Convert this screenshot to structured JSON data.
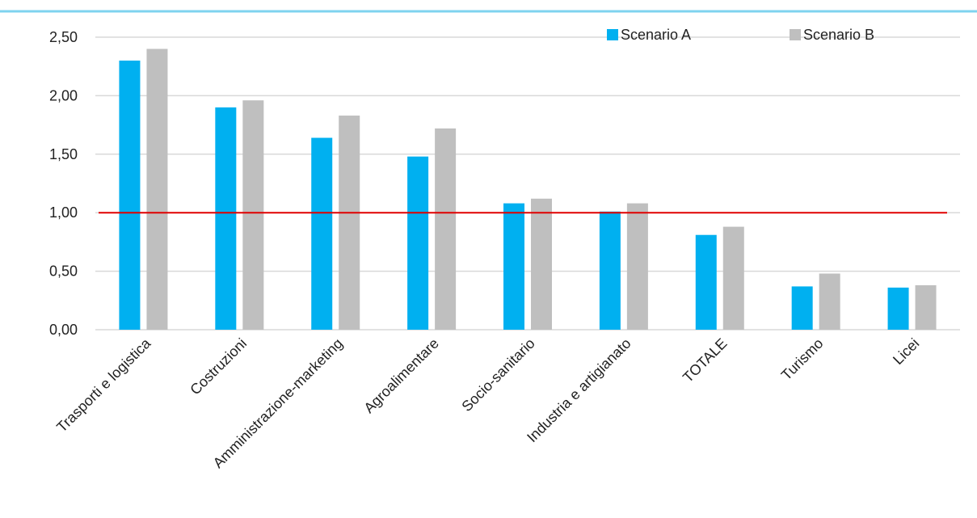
{
  "chart_data": {
    "type": "bar",
    "categories": [
      "Trasporti e logistica",
      "Costruzioni",
      "Amministrazione-marketing",
      "Agroalimentare",
      "Socio-sanitario",
      "Industria e artigianato",
      "TOTALE",
      "Turismo",
      "Licei"
    ],
    "series": [
      {
        "name": "Scenario A",
        "color": "#00B0F0",
        "values": [
          2.3,
          1.9,
          1.64,
          1.48,
          1.08,
          1.01,
          0.81,
          0.37,
          0.36
        ]
      },
      {
        "name": "Scenario B",
        "color": "#BFBFBF",
        "values": [
          2.4,
          1.96,
          1.83,
          1.72,
          1.12,
          1.08,
          0.88,
          0.48,
          0.38
        ]
      }
    ],
    "yticks": [
      "0,00",
      "0,50",
      "1,00",
      "1,50",
      "2,00",
      "2,50"
    ],
    "ylim": [
      0,
      2.5
    ],
    "reference_line": {
      "value": 1.0,
      "color": "#E00000"
    },
    "grid": true,
    "legend_position": "top-right",
    "title": "",
    "xlabel": "",
    "ylabel": ""
  }
}
